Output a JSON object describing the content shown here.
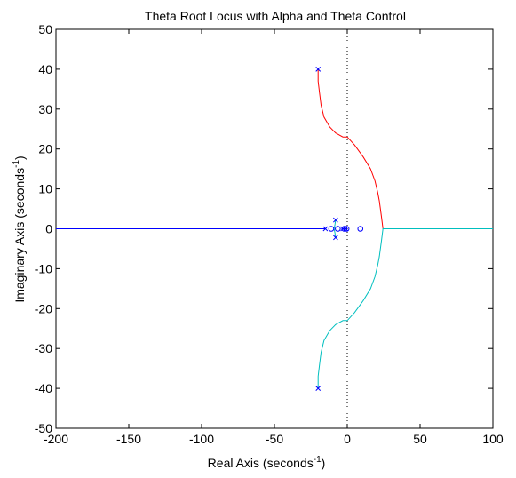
{
  "chart_data": {
    "type": "line",
    "title": "Theta Root Locus with Alpha and Theta Control",
    "xlabel": "Real Axis (seconds",
    "ylabel": "Imaginary Axis (seconds",
    "label_exponent": "-1",
    "label_close": ")",
    "xlim": [
      -200,
      100
    ],
    "ylim": [
      -50,
      50
    ],
    "xticks": [
      -200,
      -150,
      -100,
      -50,
      0,
      50,
      100
    ],
    "yticks": [
      -50,
      -40,
      -30,
      -20,
      -10,
      0,
      10,
      20,
      30,
      40,
      50
    ],
    "grid": false,
    "imaginary_axis_line": "dotted",
    "series": [
      {
        "color": "#ff0000",
        "points": [
          [
            -20,
            40
          ],
          [
            -20,
            37
          ],
          [
            -19,
            34
          ],
          [
            -18,
            31
          ],
          [
            -16,
            28
          ],
          [
            -12,
            25.5
          ],
          [
            -8,
            24
          ],
          [
            -3,
            23
          ],
          [
            0,
            23
          ],
          [
            5,
            21
          ],
          [
            11,
            18
          ],
          [
            16,
            15
          ],
          [
            19,
            12
          ],
          [
            21,
            9
          ],
          [
            22,
            7
          ],
          [
            23.5,
            3
          ],
          [
            24.5,
            0
          ],
          [
            25,
            0
          ],
          [
            100,
            0
          ]
        ]
      },
      {
        "color": "#00bfbf",
        "points": [
          [
            -20,
            -40
          ],
          [
            -20,
            -37
          ],
          [
            -19,
            -34
          ],
          [
            -18,
            -31
          ],
          [
            -16,
            -28
          ],
          [
            -12,
            -25.5
          ],
          [
            -8,
            -24
          ],
          [
            -3,
            -23
          ],
          [
            0,
            -23
          ],
          [
            5,
            -21
          ],
          [
            11,
            -18
          ],
          [
            16,
            -15
          ],
          [
            19,
            -12
          ],
          [
            21,
            -9
          ],
          [
            22,
            -7
          ],
          [
            23.5,
            -3
          ],
          [
            24.5,
            0
          ],
          [
            25,
            0
          ],
          [
            100,
            0
          ]
        ]
      },
      {
        "color": "#bf00bf",
        "points": [
          [
            -200,
            0
          ],
          [
            -15,
            0
          ]
        ]
      },
      {
        "color": "#0000ff",
        "points": [
          [
            -15,
            0
          ],
          [
            -200,
            0
          ]
        ]
      },
      {
        "color": "#00bfbf",
        "points": [
          [
            -8,
            2.2
          ],
          [
            -8.5,
            1
          ],
          [
            -9,
            0
          ]
        ]
      },
      {
        "color": "#00bfbf",
        "points": [
          [
            -8,
            -2.2
          ],
          [
            -8.5,
            -1
          ],
          [
            -9,
            0
          ]
        ]
      },
      {
        "color": "#ff0000",
        "points": [
          [
            -3,
            0
          ],
          [
            -2,
            0
          ]
        ]
      }
    ],
    "poles": [
      [
        -20,
        40
      ],
      [
        -20,
        -40
      ],
      [
        -15,
        0
      ],
      [
        -8,
        2.2
      ],
      [
        -8,
        -2.2
      ],
      [
        -3,
        0
      ],
      [
        -1,
        0
      ]
    ],
    "zeros": [
      [
        -11,
        0
      ],
      [
        -6.5,
        0
      ],
      [
        -2,
        0
      ],
      [
        -0.5,
        0
      ],
      [
        9,
        0
      ]
    ]
  }
}
